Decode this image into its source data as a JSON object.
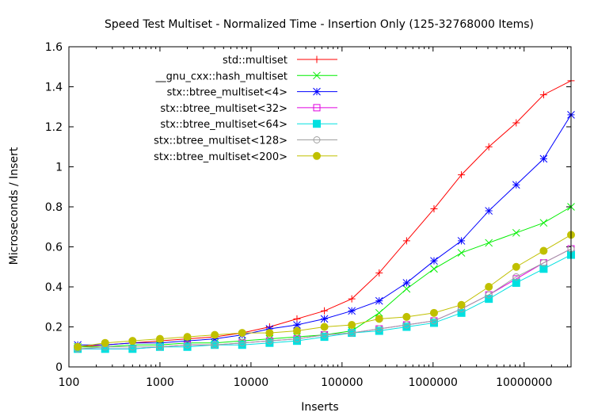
{
  "chart_data": {
    "type": "line",
    "title": "Speed Test Multiset - Normalized Time - Insertion Only (125-32768000 Items)",
    "xlabel": "Inserts",
    "ylabel": "Microseconds / Insert",
    "xscale": "log",
    "xlim": [
      100,
      32768000
    ],
    "ylim": [
      0,
      1.6
    ],
    "grid": false,
    "legend_position": "top-left",
    "x_ticks": [
      {
        "value": 100,
        "label": "100"
      },
      {
        "value": 1000,
        "label": "1000"
      },
      {
        "value": 10000,
        "label": "10000"
      },
      {
        "value": 100000,
        "label": "100000"
      },
      {
        "value": 1000000,
        "label": "1000000"
      },
      {
        "value": 10000000,
        "label": "10000000"
      }
    ],
    "y_ticks": [
      {
        "value": 0,
        "label": "0"
      },
      {
        "value": 0.2,
        "label": "0.2"
      },
      {
        "value": 0.4,
        "label": "0.4"
      },
      {
        "value": 0.6,
        "label": "0.6"
      },
      {
        "value": 0.8,
        "label": "0.8"
      },
      {
        "value": 1.0,
        "label": "1"
      },
      {
        "value": 1.2,
        "label": "1.2"
      },
      {
        "value": 1.4,
        "label": "1.4"
      },
      {
        "value": 1.6,
        "label": "1.6"
      }
    ],
    "x": [
      125,
      250,
      500,
      1000,
      2000,
      4000,
      8000,
      16000,
      32000,
      64000,
      128000,
      256000,
      512000,
      1024000,
      2048000,
      4096000,
      8192000,
      16384000,
      32768000
    ],
    "series": [
      {
        "name": "std::multiset",
        "color": "#ff0000",
        "marker": "plus",
        "values": [
          0.1,
          0.11,
          0.12,
          0.13,
          0.14,
          0.15,
          0.17,
          0.2,
          0.24,
          0.28,
          0.34,
          0.47,
          0.63,
          0.79,
          0.96,
          1.1,
          1.22,
          1.36,
          1.43
        ]
      },
      {
        "name": "__gnu_cxx::hash_multiset",
        "color": "#00ee00",
        "marker": "cross",
        "values": [
          0.1,
          0.1,
          0.11,
          0.11,
          0.12,
          0.12,
          0.13,
          0.14,
          0.15,
          0.16,
          0.18,
          0.27,
          0.39,
          0.49,
          0.57,
          0.62,
          0.67,
          0.72,
          0.8
        ]
      },
      {
        "name": "stx::btree_multiset<4>",
        "color": "#0000ff",
        "marker": "star",
        "values": [
          0.11,
          0.11,
          0.12,
          0.12,
          0.13,
          0.14,
          0.16,
          0.19,
          0.21,
          0.24,
          0.28,
          0.33,
          0.42,
          0.53,
          0.63,
          0.78,
          0.91,
          1.04,
          1.26
        ]
      },
      {
        "name": "stx::btree_multiset<32>",
        "color": "#e000e0",
        "marker": "box",
        "values": [
          0.09,
          0.09,
          0.09,
          0.1,
          0.11,
          0.11,
          0.12,
          0.13,
          0.14,
          0.16,
          0.17,
          0.19,
          0.21,
          0.23,
          0.29,
          0.36,
          0.44,
          0.52,
          0.59
        ]
      },
      {
        "name": "stx::btree_multiset<64>",
        "color": "#00e0e0",
        "marker": "filled-box",
        "values": [
          0.09,
          0.09,
          0.09,
          0.1,
          0.1,
          0.11,
          0.11,
          0.12,
          0.13,
          0.15,
          0.17,
          0.18,
          0.2,
          0.22,
          0.27,
          0.34,
          0.42,
          0.49,
          0.56
        ]
      },
      {
        "name": "stx::btree_multiset<128>",
        "color": "#a0a0a0",
        "marker": "circle",
        "values": [
          0.09,
          0.1,
          0.1,
          0.1,
          0.11,
          0.11,
          0.12,
          0.13,
          0.14,
          0.16,
          0.17,
          0.19,
          0.21,
          0.23,
          0.29,
          0.36,
          0.45,
          0.52,
          0.59
        ]
      },
      {
        "name": "stx::btree_multiset<200>",
        "color": "#c0c000",
        "marker": "filled-circle",
        "values": [
          0.1,
          0.12,
          0.13,
          0.14,
          0.15,
          0.16,
          0.17,
          0.17,
          0.18,
          0.2,
          0.21,
          0.24,
          0.25,
          0.27,
          0.31,
          0.4,
          0.5,
          0.58,
          0.66
        ]
      }
    ]
  }
}
